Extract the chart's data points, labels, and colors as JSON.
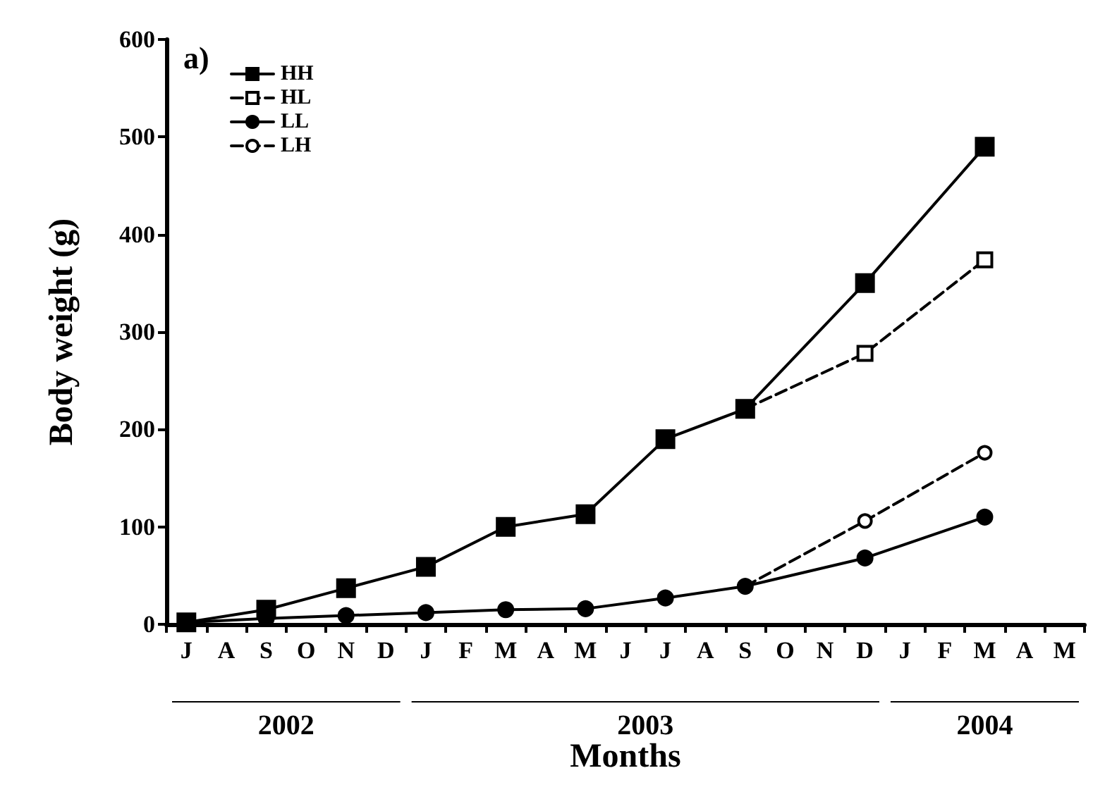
{
  "chart_data": {
    "type": "line",
    "xlabel": "Months",
    "ylabel": "Body weight (g)",
    "categories": [
      "J",
      "A",
      "S",
      "O",
      "N",
      "D",
      "J",
      "F",
      "M",
      "A",
      "M",
      "J",
      "J",
      "A",
      "S",
      "O",
      "N",
      "D",
      "J",
      "F",
      "M",
      "A",
      "M"
    ],
    "series": [
      {
        "name": "HH",
        "color": "#000000",
        "marker": "square",
        "line_style": "solid",
        "values": [
          2,
          null,
          15,
          null,
          37,
          null,
          59,
          null,
          100,
          null,
          113,
          null,
          190,
          null,
          221,
          null,
          null,
          350,
          null,
          null,
          490,
          null,
          null
        ]
      },
      {
        "name": "HL",
        "color": "#000000",
        "marker": "square",
        "line_style": "dashed",
        "values": [
          null,
          null,
          null,
          null,
          null,
          null,
          null,
          null,
          null,
          null,
          null,
          null,
          null,
          null,
          221,
          null,
          null,
          278,
          null,
          null,
          374,
          null,
          null
        ]
      },
      {
        "name": "LL",
        "color": "#000000",
        "marker": "circle",
        "line_style": "solid",
        "values": [
          2,
          null,
          6,
          null,
          9,
          null,
          12,
          null,
          15,
          null,
          16,
          null,
          27,
          null,
          39,
          null,
          null,
          68,
          null,
          null,
          110,
          null,
          null
        ]
      },
      {
        "name": "LH",
        "color": "#000000",
        "marker": "circle",
        "line_style": "dashed",
        "values": [
          null,
          null,
          null,
          null,
          null,
          null,
          null,
          null,
          null,
          null,
          null,
          null,
          null,
          null,
          39,
          null,
          null,
          106,
          null,
          null,
          176,
          null,
          null
        ]
      }
    ],
    "ylim": [
      0,
      600
    ],
    "yticks": [
      0,
      100,
      200,
      300,
      400,
      500,
      600
    ],
    "grid": false,
    "legend": "top left",
    "annotations": [
      "a)",
      "2002",
      "2003",
      "2004"
    ]
  }
}
